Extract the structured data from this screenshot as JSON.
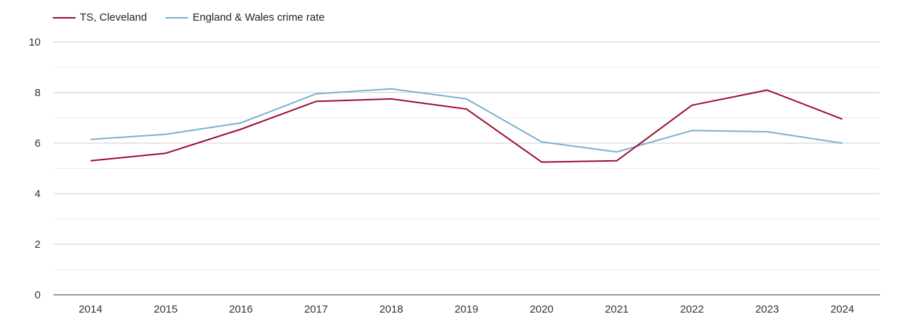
{
  "chart_data": {
    "type": "line",
    "title": "",
    "xlabel": "",
    "ylabel": "",
    "categories": [
      "2014",
      "2015",
      "2016",
      "2017",
      "2018",
      "2019",
      "2020",
      "2021",
      "2022",
      "2023",
      "2024"
    ],
    "ylim": [
      0,
      10
    ],
    "yticks": [
      0,
      2,
      4,
      6,
      8,
      10
    ],
    "legend_position": "top-left",
    "series": [
      {
        "name": "TS, Cleveland",
        "color": "#9b0a32",
        "values": [
          5.3,
          5.6,
          6.55,
          7.65,
          7.75,
          7.35,
          5.25,
          5.3,
          7.5,
          8.1,
          6.95
        ]
      },
      {
        "name": "England & Wales crime rate",
        "color": "#7ab0d0",
        "values": [
          6.15,
          6.35,
          6.8,
          7.95,
          8.15,
          7.75,
          6.05,
          5.65,
          6.5,
          6.45,
          6.0
        ]
      }
    ]
  }
}
